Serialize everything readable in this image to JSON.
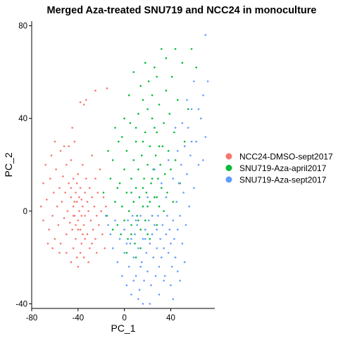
{
  "chart_data": {
    "type": "scatter",
    "title": "Merged Aza-treated SNU719 and NCC24 in monoculture",
    "xlabel": "PC_1",
    "ylabel": "PC_2",
    "xlim": [
      -80,
      78
    ],
    "ylim": [
      -42,
      82
    ],
    "xticks": [
      -80,
      -40,
      0,
      40
    ],
    "yticks": [
      -40,
      0,
      40,
      80
    ],
    "grid": false,
    "legend_position": "right",
    "series": [
      {
        "name": "NCC24-DMSO-sept2017",
        "color": "#F8766D",
        "points": [
          [
            -72,
            2
          ],
          [
            -70,
            12
          ],
          [
            -70,
            -4
          ],
          [
            -68,
            20
          ],
          [
            -67,
            5
          ],
          [
            -65,
            -8
          ],
          [
            -64,
            14
          ],
          [
            -63,
            24
          ],
          [
            -62,
            -2
          ],
          [
            -61,
            8
          ],
          [
            -60,
            -12
          ],
          [
            -59,
            18
          ],
          [
            -58,
            2
          ],
          [
            -57,
            -6
          ],
          [
            -56,
            10
          ],
          [
            -55,
            26
          ],
          [
            -55,
            -14
          ],
          [
            -54,
            4
          ],
          [
            -53,
            15
          ],
          [
            -52,
            -3
          ],
          [
            -51,
            8
          ],
          [
            -50,
            -10
          ],
          [
            -50,
            20
          ],
          [
            -49,
            0
          ],
          [
            -48,
            12
          ],
          [
            -47,
            -5
          ],
          [
            -46,
            6
          ],
          [
            -46,
            22
          ],
          [
            -45,
            -8
          ],
          [
            -44,
            2
          ],
          [
            -44,
            14
          ],
          [
            -43,
            -2
          ],
          [
            -42,
            8
          ],
          [
            -42,
            -12
          ],
          [
            -41,
            4
          ],
          [
            -40,
            16
          ],
          [
            -40,
            -4
          ],
          [
            -39,
            0
          ],
          [
            -38,
            10
          ],
          [
            -38,
            -8
          ],
          [
            -37,
            5
          ],
          [
            -37,
            -14
          ],
          [
            -36,
            2
          ],
          [
            -36,
            20
          ],
          [
            -35,
            -6
          ],
          [
            -34,
            8
          ],
          [
            -34,
            -2
          ],
          [
            -33,
            14
          ],
          [
            -32,
            -10
          ],
          [
            -32,
            4
          ],
          [
            -31,
            0
          ],
          [
            -30,
            -16
          ],
          [
            -30,
            10
          ],
          [
            -29,
            -4
          ],
          [
            -28,
            6
          ],
          [
            -28,
            24
          ],
          [
            -27,
            -8
          ],
          [
            -26,
            2
          ],
          [
            -25,
            14
          ],
          [
            -25,
            -12
          ],
          [
            -24,
            -2
          ],
          [
            -23,
            8
          ],
          [
            -22,
            -6
          ],
          [
            -21,
            18
          ],
          [
            -20,
            0
          ],
          [
            -19,
            -10
          ],
          [
            -18,
            6
          ],
          [
            -17,
            -16
          ],
          [
            -16,
            2
          ],
          [
            -38,
            47
          ],
          [
            -35,
            46
          ],
          [
            -33,
            48
          ],
          [
            -25,
            52
          ],
          [
            -15,
            53
          ],
          [
            -45,
            36
          ],
          [
            -48,
            28
          ],
          [
            -60,
            30
          ],
          [
            -66,
            -14
          ],
          [
            -62,
            -16
          ],
          [
            -56,
            -18
          ],
          [
            -50,
            -18
          ],
          [
            -44,
            -16
          ],
          [
            -41,
            -20
          ],
          [
            -38,
            -18
          ],
          [
            -35,
            -20
          ],
          [
            -31,
            -22
          ],
          [
            -28,
            -14
          ],
          [
            -24,
            -18
          ],
          [
            -52,
            28
          ],
          [
            -43,
            30
          ],
          [
            -46,
            -22
          ],
          [
            -40,
            -24
          ],
          [
            -34,
            -12
          ],
          [
            -46,
            10
          ],
          [
            -39,
            6
          ],
          [
            -42,
            -6
          ],
          [
            -36,
            -10
          ],
          [
            -44,
            -2
          ],
          [
            -41,
            12
          ],
          [
            -37,
            -2
          ],
          [
            -43,
            4
          ],
          [
            -40,
            -8
          ]
        ]
      },
      {
        "name": "SNU719-Aza-april2017",
        "color": "#00BA38",
        "points": [
          [
            -18,
            8
          ],
          [
            -15,
            -2
          ],
          [
            -12,
            14
          ],
          [
            -10,
            22
          ],
          [
            -8,
            4
          ],
          [
            -6,
            -6
          ],
          [
            -5,
            30
          ],
          [
            -4,
            12
          ],
          [
            -3,
            -10
          ],
          [
            -2,
            2
          ],
          [
            0,
            18
          ],
          [
            0,
            -4
          ],
          [
            2,
            26
          ],
          [
            2,
            8
          ],
          [
            3,
            -12
          ],
          [
            4,
            0
          ],
          [
            5,
            38
          ],
          [
            6,
            14
          ],
          [
            6,
            -6
          ],
          [
            8,
            4
          ],
          [
            8,
            22
          ],
          [
            9,
            -14
          ],
          [
            10,
            10
          ],
          [
            10,
            30
          ],
          [
            11,
            -2
          ],
          [
            12,
            18
          ],
          [
            12,
            42
          ],
          [
            13,
            6
          ],
          [
            14,
            -8
          ],
          [
            15,
            24
          ],
          [
            16,
            2
          ],
          [
            16,
            48
          ],
          [
            17,
            14
          ],
          [
            18,
            -4
          ],
          [
            18,
            34
          ],
          [
            19,
            8
          ],
          [
            20,
            20
          ],
          [
            20,
            -10
          ],
          [
            21,
            56
          ],
          [
            22,
            4
          ],
          [
            22,
            28
          ],
          [
            23,
            12
          ],
          [
            24,
            -2
          ],
          [
            24,
            40
          ],
          [
            25,
            18
          ],
          [
            26,
            6
          ],
          [
            26,
            62
          ],
          [
            27,
            24
          ],
          [
            28,
            -6
          ],
          [
            28,
            34
          ],
          [
            29,
            14
          ],
          [
            30,
            2
          ],
          [
            30,
            46
          ],
          [
            31,
            20
          ],
          [
            32,
            10
          ],
          [
            32,
            70
          ],
          [
            33,
            28
          ],
          [
            34,
            0
          ],
          [
            34,
            38
          ],
          [
            35,
            16
          ],
          [
            36,
            52
          ],
          [
            37,
            8
          ],
          [
            38,
            26
          ],
          [
            39,
            42
          ],
          [
            40,
            18
          ],
          [
            41,
            58
          ],
          [
            42,
            4
          ],
          [
            43,
            34
          ],
          [
            44,
            22
          ],
          [
            46,
            48
          ],
          [
            48,
            12
          ],
          [
            50,
            64
          ],
          [
            52,
            30
          ],
          [
            55,
            44
          ],
          [
            58,
            70
          ],
          [
            62,
            62
          ],
          [
            -10,
            -8
          ],
          [
            -6,
            10
          ],
          [
            2,
            -18
          ],
          [
            6,
            -10
          ],
          [
            10,
            -20
          ],
          [
            14,
            -16
          ],
          [
            16,
            30
          ],
          [
            20,
            44
          ],
          [
            24,
            50
          ],
          [
            26,
            36
          ],
          [
            30,
            28
          ],
          [
            14,
            54
          ],
          [
            8,
            60
          ],
          [
            4,
            50
          ],
          [
            18,
            64
          ],
          [
            28,
            58
          ],
          [
            0,
            40
          ],
          [
            -2,
            32
          ],
          [
            36,
            66
          ],
          [
            44,
            70
          ],
          [
            12,
            -4
          ],
          [
            6,
            8
          ],
          [
            16,
            10
          ],
          [
            20,
            2
          ],
          [
            24,
            14
          ],
          [
            28,
            6
          ],
          [
            -14,
            26
          ],
          [
            -8,
            36
          ],
          [
            22,
            -12
          ],
          [
            10,
            36
          ]
        ]
      },
      {
        "name": "SNU719-Aza-sept2017",
        "color": "#619CFF",
        "points": [
          [
            -14,
            -6
          ],
          [
            -10,
            -16
          ],
          [
            -8,
            -4
          ],
          [
            -6,
            -22
          ],
          [
            -4,
            -12
          ],
          [
            -2,
            -28
          ],
          [
            0,
            -8
          ],
          [
            0,
            -18
          ],
          [
            2,
            -32
          ],
          [
            3,
            -4
          ],
          [
            4,
            -24
          ],
          [
            5,
            -14
          ],
          [
            6,
            -36
          ],
          [
            7,
            -2
          ],
          [
            8,
            -20
          ],
          [
            9,
            -10
          ],
          [
            10,
            -28
          ],
          [
            11,
            -6
          ],
          [
            12,
            -16
          ],
          [
            13,
            -34
          ],
          [
            14,
            -2
          ],
          [
            15,
            -22
          ],
          [
            16,
            -12
          ],
          [
            17,
            -30
          ],
          [
            18,
            -8
          ],
          [
            19,
            -18
          ],
          [
            20,
            -26
          ],
          [
            21,
            -4
          ],
          [
            22,
            -14
          ],
          [
            23,
            -32
          ],
          [
            24,
            -10
          ],
          [
            25,
            -20
          ],
          [
            26,
            -6
          ],
          [
            27,
            -28
          ],
          [
            28,
            -16
          ],
          [
            29,
            -2
          ],
          [
            30,
            -24
          ],
          [
            31,
            -12
          ],
          [
            32,
            -20
          ],
          [
            33,
            -6
          ],
          [
            34,
            -16
          ],
          [
            35,
            -28
          ],
          [
            36,
            -10
          ],
          [
            37,
            -2
          ],
          [
            38,
            -18
          ],
          [
            39,
            -8
          ],
          [
            40,
            -14
          ],
          [
            41,
            -24
          ],
          [
            42,
            -4
          ],
          [
            43,
            -12
          ],
          [
            44,
            -20
          ],
          [
            45,
            4
          ],
          [
            46,
            -8
          ],
          [
            47,
            12
          ],
          [
            48,
            -2
          ],
          [
            49,
            20
          ],
          [
            50,
            -14
          ],
          [
            51,
            8
          ],
          [
            52,
            28
          ],
          [
            53,
            -6
          ],
          [
            54,
            16
          ],
          [
            55,
            36
          ],
          [
            56,
            2
          ],
          [
            57,
            24
          ],
          [
            58,
            44
          ],
          [
            60,
            10
          ],
          [
            62,
            30
          ],
          [
            64,
            20
          ],
          [
            66,
            40
          ],
          [
            68,
            22
          ],
          [
            70,
            32
          ],
          [
            72,
            56
          ],
          [
            70,
            76
          ],
          [
            68,
            50
          ],
          [
            30,
            -36
          ],
          [
            34,
            -30
          ],
          [
            40,
            -32
          ],
          [
            46,
            -26
          ],
          [
            52,
            -22
          ],
          [
            22,
            -40
          ],
          [
            16,
            -40
          ],
          [
            42,
            -38
          ],
          [
            -16,
            -2
          ],
          [
            -12,
            -10
          ],
          [
            6,
            -12
          ],
          [
            10,
            -4
          ],
          [
            14,
            -24
          ],
          [
            18,
            -12
          ],
          [
            24,
            -2
          ],
          [
            28,
            -8
          ],
          [
            8,
            -30
          ],
          [
            2,
            -14
          ],
          [
            36,
            6
          ],
          [
            42,
            14
          ],
          [
            46,
            26
          ],
          [
            50,
            38
          ],
          [
            54,
            48
          ],
          [
            60,
            56
          ],
          [
            64,
            44
          ],
          [
            58,
            30
          ],
          [
            44,
            36
          ],
          [
            38,
            22
          ],
          [
            32,
            12
          ],
          [
            26,
            18
          ],
          [
            20,
            6
          ],
          [
            48,
            -30
          ],
          [
            12,
            -38
          ]
        ]
      }
    ]
  }
}
